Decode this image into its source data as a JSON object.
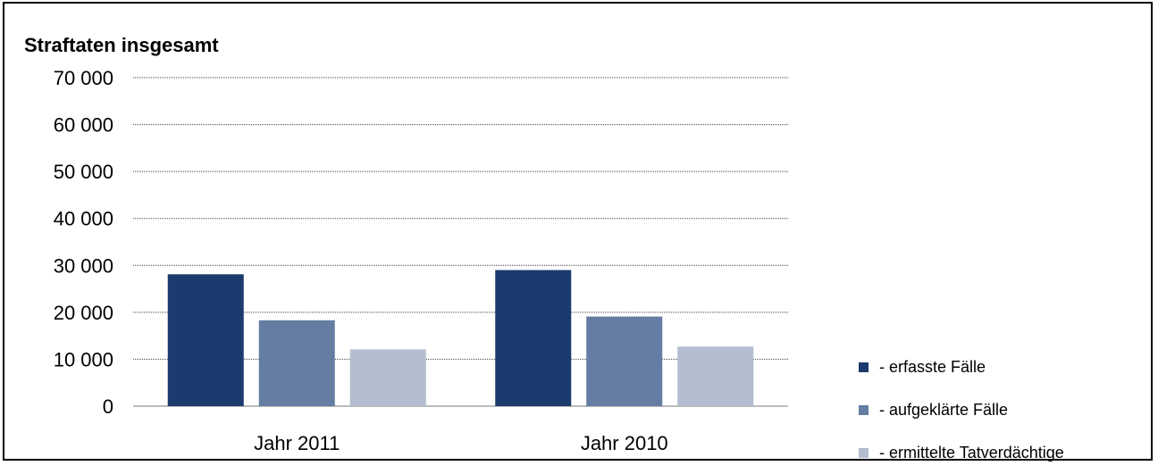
{
  "chart_data": {
    "type": "bar",
    "title": "Straftaten insgesamt",
    "categories": [
      "Jahr 2011",
      "Jahr 2010"
    ],
    "series": [
      {
        "name": "-  erfasste Fälle",
        "values": [
          28100,
          29000
        ],
        "color": "#1b3a6d"
      },
      {
        "name": "-  aufgeklärte Fälle",
        "values": [
          18300,
          19100
        ],
        "color": "#657da3"
      },
      {
        "name": "-  ermittelte Tatverdächtige",
        "values": [
          12100,
          12700
        ],
        "color": "#b3bdcf"
      }
    ],
    "ylim": [
      0,
      70000
    ],
    "yticks": [
      0,
      10000,
      20000,
      30000,
      40000,
      50000,
      60000,
      70000
    ],
    "ytick_labels": [
      "0",
      "10 000",
      "20 000",
      "30 000",
      "40 000",
      "50 000",
      "60 000",
      "70 000"
    ],
    "xlabel": "",
    "ylabel": "",
    "grid": true,
    "legend_position": "bottom-right"
  }
}
